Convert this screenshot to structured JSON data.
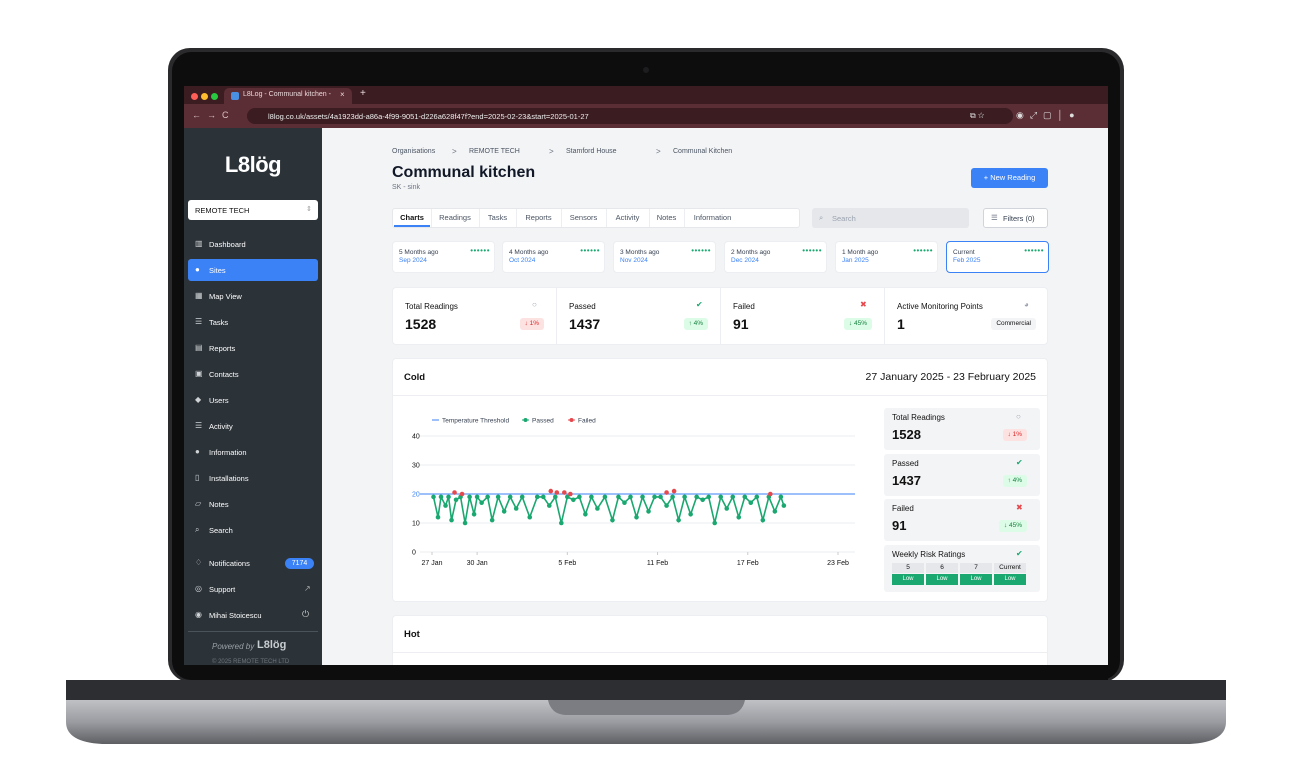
{
  "browser": {
    "tab_title": "L8Log - Communal kitchen - ",
    "url": "l8log.co.uk/assets/4a1923dd-a86a-4f99-9051-d226a628f47f?end=2025-02-23&start=2025-01-27"
  },
  "sidebar": {
    "logo": "L8lög",
    "organisation": "REMOTE TECH",
    "nav": [
      "Dashboard",
      "Sites",
      "Map View",
      "Tasks",
      "Reports",
      "Contacts",
      "Users",
      "Activity",
      "Information",
      "Installations",
      "Notes",
      "Search"
    ],
    "active": 1,
    "notifications": "Notifications",
    "notification_count": 7174,
    "support": "Support",
    "user": "Mihai Stoicescu",
    "powered_by": "Powered by",
    "powered_logo": "L8lög",
    "copyright": "© 2025 REMOTE TECH LTD"
  },
  "breadcrumb": [
    "Organisations",
    "REMOTE TECH",
    "Stamford House",
    "Communal Kitchen"
  ],
  "header": {
    "title": "Communal kitchen",
    "subtitle": "SK - sink",
    "button": "New Reading"
  },
  "tabs": [
    "Charts",
    "Readings",
    "Tasks",
    "Reports",
    "Sensors",
    "Activity",
    "Notes",
    "Information"
  ],
  "search_placeholder": "Search",
  "filters": "Filters (0)",
  "months": [
    {
      "ago": "5 Months ago",
      "month": "Sep 2024"
    },
    {
      "ago": "4 Months ago",
      "month": "Oct 2024"
    },
    {
      "ago": "3 Months ago",
      "month": "Nov 2024"
    },
    {
      "ago": "2 Months ago",
      "month": "Dec 2024"
    },
    {
      "ago": "1 Month ago",
      "month": "Jan 2025"
    },
    {
      "ago": "Current",
      "month": "Feb 2025"
    }
  ],
  "stats": [
    {
      "label": "Total Readings",
      "value": 1528,
      "change": "↓ 1%"
    },
    {
      "label": "Passed",
      "value": 1437,
      "change": "↑ 4%"
    },
    {
      "label": "Failed",
      "value": 91,
      "change": "↓ 45%"
    },
    {
      "label": "Active Monitoring Points",
      "value": 1,
      "change": "Commercial"
    }
  ],
  "cold": {
    "title": "Cold",
    "range": "27 January 2025 - 23 February 2025",
    "chart": {
      "type": "scatter",
      "threshold": {
        "name": "Temperature Threshold",
        "value": 20,
        "color": "#3b82f6"
      },
      "xlim": [
        0,
        27
      ],
      "xticks": [
        {
          "value": 0,
          "label": "27 Jan"
        },
        {
          "value": 3,
          "label": "30 Jan"
        },
        {
          "value": 9,
          "label": "5 Feb"
        },
        {
          "value": 15,
          "label": "11 Feb"
        },
        {
          "value": 21,
          "label": "17 Feb"
        },
        {
          "value": 27,
          "label": "23 Feb"
        }
      ],
      "ylim": [
        0,
        40
      ],
      "yticks": [
        0,
        10,
        20,
        30,
        40
      ],
      "grid": true,
      "series": [
        {
          "name": "Passed",
          "color": "#1aa870",
          "x": [
            0.1,
            0.4,
            0.6,
            0.9,
            1.1,
            1.3,
            1.6,
            1.9,
            2.2,
            2.5,
            2.8,
            3.0,
            3.3,
            3.7,
            4.0,
            4.4,
            4.8,
            5.2,
            5.6,
            6.0,
            6.5,
            7.0,
            7.4,
            7.8,
            8.2,
            8.6,
            9.0,
            9.4,
            9.8,
            10.2,
            10.6,
            11.0,
            11.5,
            12.0,
            12.4,
            12.8,
            13.2,
            13.6,
            14.0,
            14.4,
            14.8,
            15.2,
            15.6,
            16.0,
            16.4,
            16.8,
            17.2,
            17.6,
            18.0,
            18.4,
            18.8,
            19.2,
            19.6,
            20.0,
            20.4,
            20.8,
            21.2,
            21.6,
            22.0,
            22.4,
            22.8,
            23.2,
            23.4
          ],
          "values": [
            19,
            12,
            19,
            16,
            19,
            11,
            18,
            19,
            10,
            19,
            13,
            19,
            17,
            19,
            11,
            19,
            14,
            19,
            15,
            19,
            12,
            19,
            19,
            16,
            19,
            10,
            19,
            18,
            19,
            13,
            19,
            15,
            19,
            11,
            19,
            17,
            19,
            12,
            19,
            14,
            19,
            19,
            16,
            19,
            11,
            19,
            13,
            19,
            18,
            19,
            10,
            19,
            15,
            19,
            12,
            19,
            17,
            19,
            11,
            19,
            14,
            19,
            16
          ]
        },
        {
          "name": "Failed",
          "color": "#e5484d",
          "x": [
            1.5,
            2.0,
            7.9,
            8.3,
            8.8,
            9.2,
            15.6,
            16.1,
            22.5
          ],
          "values": [
            20.5,
            20,
            21,
            20.5,
            20.5,
            20,
            20.5,
            21,
            20
          ]
        }
      ]
    },
    "side_stats": [
      {
        "label": "Total Readings",
        "value": 1528,
        "change": "↓ 1%"
      },
      {
        "label": "Passed",
        "value": 1437,
        "change": "↑ 4%"
      },
      {
        "label": "Failed",
        "value": 91,
        "change": "↓ 45%"
      }
    ],
    "weekly": {
      "title": "Weekly Risk Ratings",
      "weeks": [
        {
          "label": 5,
          "rating": "Low"
        },
        {
          "label": 6,
          "rating": "Low"
        },
        {
          "label": 7,
          "rating": "Low"
        },
        {
          "label": "Current",
          "rating": "Low"
        }
      ]
    }
  },
  "hot": {
    "title": "Hot"
  }
}
